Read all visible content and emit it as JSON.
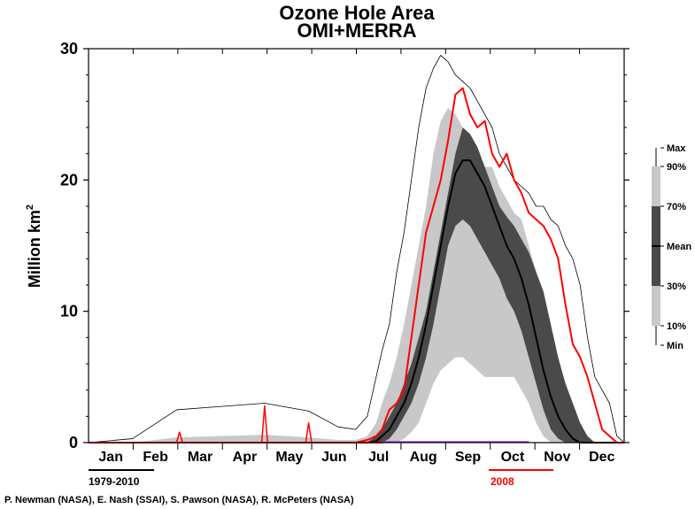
{
  "chart_data": {
    "type": "area",
    "title": "Ozone Hole Area",
    "subtitle": "OMI+MERRA",
    "ylabel": "Million km",
    "ylabel_superscript": "2",
    "ylim": [
      0,
      30
    ],
    "yticks": [
      "0",
      "10",
      "20",
      "30"
    ],
    "xlim": [
      0,
      365
    ],
    "months": [
      "Jan",
      "Feb",
      "Mar",
      "Apr",
      "May",
      "Jun",
      "Jul",
      "Aug",
      "Sep",
      "Oct",
      "Nov",
      "Dec"
    ],
    "climatology_label": "1979-2010",
    "year_label": "2008",
    "credit": "P. Newman (NASA), E. Nash (SSAI), S. Pawson (NASA), R. McPeters (NASA)",
    "legend": [
      "Max",
      "90%",
      "70%",
      "Mean",
      "30%",
      "10%",
      "Min"
    ],
    "colors": {
      "band_10_90": "#c8c8c8",
      "band_30_70": "#4a4a4a",
      "mean": "#000000",
      "max": "#000000",
      "year": "#ff0000",
      "min": "#8a2be2"
    },
    "x": [
      0,
      30,
      60,
      120,
      150,
      170,
      182,
      190,
      196,
      200,
      205,
      210,
      215,
      220,
      225,
      230,
      235,
      240,
      245,
      250,
      255,
      260,
      265,
      270,
      275,
      280,
      285,
      290,
      295,
      300,
      305,
      310,
      315,
      320,
      325,
      330,
      335,
      340,
      345,
      350,
      355,
      360,
      365
    ],
    "series": [
      {
        "name": "Max",
        "values": [
          0,
          0.3,
          2.5,
          3,
          2.4,
          1.2,
          1,
          2,
          5,
          7,
          9,
          13,
          16,
          20,
          24,
          27,
          28.5,
          29.5,
          29,
          28,
          27.5,
          27,
          26,
          25,
          24,
          22,
          21,
          20,
          19.5,
          19,
          18,
          18,
          17,
          16.5,
          15,
          14,
          12,
          8,
          5,
          4,
          3,
          0.5,
          0
        ]
      },
      {
        "name": "90%",
        "values": [
          0,
          0,
          0.4,
          0.6,
          0.4,
          0.2,
          0.2,
          0.5,
          1.5,
          3,
          4.5,
          6.5,
          9,
          12,
          15,
          18,
          22,
          24.5,
          25.5,
          25,
          24,
          23,
          22.5,
          21,
          21,
          19.5,
          18.5,
          17.5,
          17,
          15,
          13,
          11,
          9,
          6,
          4,
          2.5,
          1,
          0.3,
          0,
          0,
          0,
          0,
          0
        ]
      },
      {
        "name": "70%",
        "values": [
          0,
          0,
          0,
          0,
          0,
          0,
          0,
          0,
          0.5,
          1,
          2,
          3,
          4.5,
          6,
          8,
          10,
          13,
          16,
          19,
          22,
          24,
          23.5,
          22.5,
          21,
          19.5,
          18,
          17.2,
          16.5,
          15.5,
          14.5,
          13,
          11.5,
          9,
          6.5,
          4.5,
          3,
          1.5,
          0.5,
          0,
          0,
          0,
          0,
          0
        ]
      },
      {
        "name": "Mean",
        "values": [
          0,
          0,
          0,
          0,
          0,
          0,
          0,
          0,
          0.1,
          0.5,
          1,
          2,
          3,
          4.5,
          6.5,
          9,
          12,
          15,
          18,
          20.5,
          21.5,
          21.5,
          20.5,
          19.5,
          18,
          16.5,
          15,
          14,
          12.5,
          10.5,
          8,
          5.5,
          3.5,
          2,
          1,
          0.3,
          0,
          0,
          0,
          0,
          0,
          0,
          0
        ]
      },
      {
        "name": "30%",
        "values": [
          0,
          0,
          0,
          0,
          0,
          0,
          0,
          0,
          0,
          0,
          0.3,
          1,
          2,
          3,
          4.5,
          6.5,
          9,
          12,
          15,
          16.5,
          17,
          16.5,
          15.5,
          14.5,
          13.5,
          12.5,
          11,
          10,
          8.5,
          6.5,
          4.5,
          2.5,
          1,
          0.3,
          0,
          0,
          0,
          0,
          0,
          0,
          0,
          0,
          0
        ]
      },
      {
        "name": "10%",
        "values": [
          0,
          0,
          0,
          0,
          0,
          0,
          0,
          0,
          0,
          0,
          0,
          0,
          0.3,
          0.8,
          1.5,
          3,
          4.5,
          5.5,
          6,
          6.5,
          6.5,
          6,
          5.5,
          5,
          5,
          5,
          5,
          5,
          4,
          3,
          1.5,
          0.5,
          0,
          0,
          0,
          0,
          0,
          0,
          0,
          0,
          0,
          0,
          0
        ]
      },
      {
        "name": "2008",
        "values": [
          0,
          0,
          0,
          0,
          0,
          0,
          0,
          0.2,
          0.5,
          1,
          2.5,
          3,
          4,
          8,
          12,
          16,
          18,
          20,
          23,
          26.5,
          27,
          25,
          24,
          24.5,
          22,
          21,
          22,
          20,
          19,
          17.5,
          17,
          16.5,
          15.5,
          14,
          10.5,
          7.5,
          6.5,
          5,
          3,
          1,
          0.5,
          0,
          0
        ]
      }
    ],
    "minor_spikes_2008": [
      [
        60,
        0
      ],
      [
        62,
        0.8
      ],
      [
        64,
        0
      ],
      [
        118,
        0
      ],
      [
        120,
        2.8
      ],
      [
        122,
        0
      ],
      [
        148,
        0
      ],
      [
        150,
        1.5
      ],
      [
        152,
        0
      ]
    ]
  }
}
